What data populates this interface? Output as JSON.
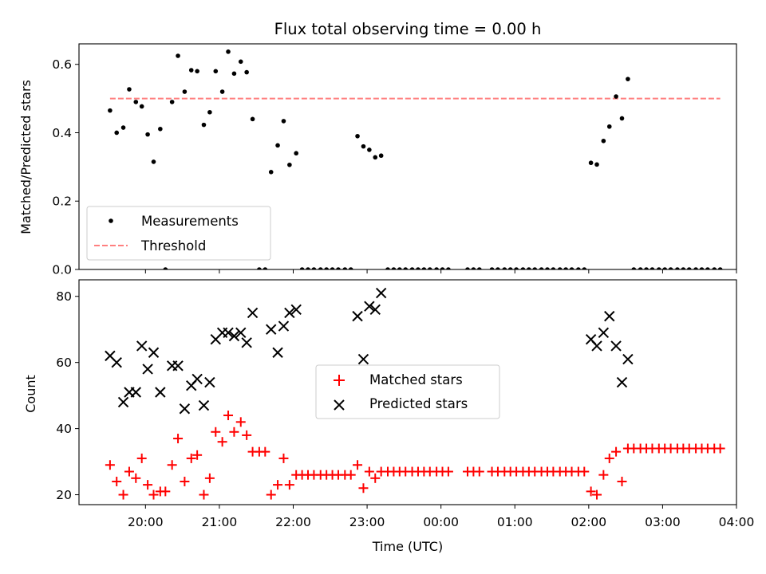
{
  "chart_data": [
    {
      "type": "scatter",
      "title": "Flux total observing time = 0.00 h",
      "xlabel": "",
      "ylabel": "Matched/Predicted stars",
      "ylim": [
        0,
        0.66
      ],
      "yticks": [
        0.0,
        0.2,
        0.4,
        0.6
      ],
      "ytick_labels": [
        "0.0",
        "0.2",
        "0.4",
        "0.6"
      ],
      "xlim_hours": [
        19.1,
        28.0
      ],
      "legend_position": "lower-left",
      "series": [
        {
          "name": "Measurements",
          "kind": "scatter",
          "color": "#000000",
          "points": [
            [
              19.52,
              0.465
            ],
            [
              19.61,
              0.4
            ],
            [
              19.7,
              0.415
            ],
            [
              19.78,
              0.527
            ],
            [
              19.87,
              0.49
            ],
            [
              19.95,
              0.477
            ],
            [
              20.03,
              0.395
            ],
            [
              20.11,
              0.315
            ],
            [
              20.2,
              0.411
            ],
            [
              20.27,
              0.0
            ],
            [
              20.36,
              0.49
            ],
            [
              20.44,
              0.625
            ],
            [
              20.53,
              0.52
            ],
            [
              20.62,
              0.583
            ],
            [
              20.7,
              0.58
            ],
            [
              20.79,
              0.423
            ],
            [
              20.87,
              0.46
            ],
            [
              20.95,
              0.58
            ],
            [
              21.04,
              0.52
            ],
            [
              21.12,
              0.637
            ],
            [
              21.2,
              0.573
            ],
            [
              21.29,
              0.608
            ],
            [
              21.37,
              0.577
            ],
            [
              21.45,
              0.44
            ],
            [
              21.54,
              0.0
            ],
            [
              21.62,
              0.0
            ],
            [
              21.7,
              0.285
            ],
            [
              21.79,
              0.363
            ],
            [
              21.87,
              0.434
            ],
            [
              21.95,
              0.306
            ],
            [
              22.04,
              0.34
            ],
            [
              22.12,
              0.0
            ],
            [
              22.2,
              0.0
            ],
            [
              22.28,
              0.0
            ],
            [
              22.37,
              0.0
            ],
            [
              22.45,
              0.0
            ],
            [
              22.53,
              0.0
            ],
            [
              22.61,
              0.0
            ],
            [
              22.7,
              0.0
            ],
            [
              22.78,
              0.0
            ],
            [
              22.87,
              0.39
            ],
            [
              22.95,
              0.36
            ],
            [
              23.03,
              0.35
            ],
            [
              23.11,
              0.328
            ],
            [
              23.19,
              0.333
            ],
            [
              23.28,
              0.0
            ],
            [
              23.36,
              0.0
            ],
            [
              23.44,
              0.0
            ],
            [
              23.52,
              0.0
            ],
            [
              23.61,
              0.0
            ],
            [
              23.69,
              0.0
            ],
            [
              23.77,
              0.0
            ],
            [
              23.85,
              0.0
            ],
            [
              23.94,
              0.0
            ],
            [
              24.02,
              0.0
            ],
            [
              24.1,
              0.0
            ],
            [
              24.36,
              0.0
            ],
            [
              24.44,
              0.0
            ],
            [
              24.52,
              0.0
            ],
            [
              24.69,
              0.0
            ],
            [
              24.77,
              0.0
            ],
            [
              24.86,
              0.0
            ],
            [
              24.94,
              0.0
            ],
            [
              25.02,
              0.0
            ],
            [
              25.11,
              0.0
            ],
            [
              25.19,
              0.0
            ],
            [
              25.27,
              0.0
            ],
            [
              25.36,
              0.0
            ],
            [
              25.44,
              0.0
            ],
            [
              25.52,
              0.0
            ],
            [
              25.61,
              0.0
            ],
            [
              25.69,
              0.0
            ],
            [
              25.77,
              0.0
            ],
            [
              25.86,
              0.0
            ],
            [
              25.94,
              0.0
            ],
            [
              26.03,
              0.312
            ],
            [
              26.11,
              0.307
            ],
            [
              26.2,
              0.376
            ],
            [
              26.28,
              0.418
            ],
            [
              26.37,
              0.506
            ],
            [
              26.45,
              0.442
            ],
            [
              26.53,
              0.557
            ],
            [
              26.61,
              0.0
            ],
            [
              26.7,
              0.0
            ],
            [
              26.78,
              0.0
            ],
            [
              26.86,
              0.0
            ],
            [
              26.95,
              0.0
            ],
            [
              27.03,
              0.0
            ],
            [
              27.11,
              0.0
            ],
            [
              27.2,
              0.0
            ],
            [
              27.28,
              0.0
            ],
            [
              27.36,
              0.0
            ],
            [
              27.45,
              0.0
            ],
            [
              27.53,
              0.0
            ],
            [
              27.61,
              0.0
            ],
            [
              27.7,
              0.0
            ],
            [
              27.78,
              0.0
            ]
          ]
        },
        {
          "name": "Threshold",
          "kind": "dashed-line",
          "color": "#ff7f7f",
          "x": [
            19.52,
            27.78
          ],
          "y": [
            0.5,
            0.5
          ]
        }
      ]
    },
    {
      "type": "scatter",
      "title": "",
      "xlabel": "Time (UTC)",
      "ylabel": "Count",
      "ylim": [
        17,
        85
      ],
      "yticks": [
        20,
        40,
        60,
        80
      ],
      "ytick_labels": [
        "20",
        "40",
        "60",
        "80"
      ],
      "xlim_hours": [
        19.1,
        28.0
      ],
      "xticks_hours": [
        20,
        21,
        22,
        23,
        24,
        25,
        26,
        27,
        28
      ],
      "xtick_labels": [
        "20:00",
        "21:00",
        "22:00",
        "23:00",
        "00:00",
        "01:00",
        "02:00",
        "03:00",
        "04:00"
      ],
      "legend_position": "center",
      "series": [
        {
          "name": "Matched stars",
          "marker": "plus",
          "color": "#ff0000",
          "points": [
            [
              19.52,
              29
            ],
            [
              19.61,
              24
            ],
            [
              19.7,
              20
            ],
            [
              19.78,
              27
            ],
            [
              19.87,
              25
            ],
            [
              19.95,
              31
            ],
            [
              20.03,
              23
            ],
            [
              20.11,
              20
            ],
            [
              20.2,
              21
            ],
            [
              20.27,
              21
            ],
            [
              20.36,
              29
            ],
            [
              20.44,
              37
            ],
            [
              20.53,
              24
            ],
            [
              20.62,
              31
            ],
            [
              20.7,
              32
            ],
            [
              20.79,
              20
            ],
            [
              20.87,
              25
            ],
            [
              20.95,
              39
            ],
            [
              21.04,
              36
            ],
            [
              21.12,
              44
            ],
            [
              21.2,
              39
            ],
            [
              21.29,
              42
            ],
            [
              21.37,
              38
            ],
            [
              21.45,
              33
            ],
            [
              21.54,
              33
            ],
            [
              21.62,
              33
            ],
            [
              21.7,
              20
            ],
            [
              21.79,
              23
            ],
            [
              21.87,
              31
            ],
            [
              21.95,
              23
            ],
            [
              22.04,
              26
            ],
            [
              22.12,
              26
            ],
            [
              22.2,
              26
            ],
            [
              22.28,
              26
            ],
            [
              22.37,
              26
            ],
            [
              22.45,
              26
            ],
            [
              22.53,
              26
            ],
            [
              22.61,
              26
            ],
            [
              22.7,
              26
            ],
            [
              22.78,
              26
            ],
            [
              22.87,
              29
            ],
            [
              22.95,
              22
            ],
            [
              23.03,
              27
            ],
            [
              23.11,
              25
            ],
            [
              23.19,
              27
            ],
            [
              23.28,
              27
            ],
            [
              23.36,
              27
            ],
            [
              23.44,
              27
            ],
            [
              23.52,
              27
            ],
            [
              23.61,
              27
            ],
            [
              23.69,
              27
            ],
            [
              23.77,
              27
            ],
            [
              23.85,
              27
            ],
            [
              23.94,
              27
            ],
            [
              24.02,
              27
            ],
            [
              24.1,
              27
            ],
            [
              24.36,
              27
            ],
            [
              24.44,
              27
            ],
            [
              24.52,
              27
            ],
            [
              24.69,
              27
            ],
            [
              24.77,
              27
            ],
            [
              24.86,
              27
            ],
            [
              24.94,
              27
            ],
            [
              25.02,
              27
            ],
            [
              25.11,
              27
            ],
            [
              25.19,
              27
            ],
            [
              25.27,
              27
            ],
            [
              25.36,
              27
            ],
            [
              25.44,
              27
            ],
            [
              25.52,
              27
            ],
            [
              25.61,
              27
            ],
            [
              25.69,
              27
            ],
            [
              25.77,
              27
            ],
            [
              25.86,
              27
            ],
            [
              25.94,
              27
            ],
            [
              26.03,
              21
            ],
            [
              26.11,
              20
            ],
            [
              26.2,
              26
            ],
            [
              26.28,
              31
            ],
            [
              26.37,
              33
            ],
            [
              26.45,
              24
            ],
            [
              26.53,
              34
            ],
            [
              26.61,
              34
            ],
            [
              26.7,
              34
            ],
            [
              26.78,
              34
            ],
            [
              26.86,
              34
            ],
            [
              26.95,
              34
            ],
            [
              27.03,
              34
            ],
            [
              27.11,
              34
            ],
            [
              27.2,
              34
            ],
            [
              27.28,
              34
            ],
            [
              27.36,
              34
            ],
            [
              27.45,
              34
            ],
            [
              27.53,
              34
            ],
            [
              27.61,
              34
            ],
            [
              27.7,
              34
            ],
            [
              27.78,
              34
            ]
          ]
        },
        {
          "name": "Predicted stars",
          "marker": "x",
          "color": "#000000",
          "points": [
            [
              19.52,
              62
            ],
            [
              19.61,
              60
            ],
            [
              19.7,
              48
            ],
            [
              19.78,
              51
            ],
            [
              19.87,
              51
            ],
            [
              19.95,
              65
            ],
            [
              20.03,
              58
            ],
            [
              20.11,
              63
            ],
            [
              20.2,
              51
            ],
            [
              20.36,
              59
            ],
            [
              20.44,
              59
            ],
            [
              20.53,
              46
            ],
            [
              20.62,
              53
            ],
            [
              20.7,
              55
            ],
            [
              20.79,
              47
            ],
            [
              20.87,
              54
            ],
            [
              20.95,
              67
            ],
            [
              21.04,
              69
            ],
            [
              21.12,
              69
            ],
            [
              21.2,
              68
            ],
            [
              21.29,
              69
            ],
            [
              21.37,
              66
            ],
            [
              21.45,
              75
            ],
            [
              21.7,
              70
            ],
            [
              21.79,
              63
            ],
            [
              21.87,
              71
            ],
            [
              21.95,
              75
            ],
            [
              22.04,
              76
            ],
            [
              22.87,
              74
            ],
            [
              22.95,
              61
            ],
            [
              23.03,
              77
            ],
            [
              23.11,
              76
            ],
            [
              23.19,
              81
            ],
            [
              26.03,
              67
            ],
            [
              26.11,
              65
            ],
            [
              26.2,
              69
            ],
            [
              26.28,
              74
            ],
            [
              26.37,
              65
            ],
            [
              26.45,
              54
            ],
            [
              26.53,
              61
            ]
          ]
        }
      ]
    }
  ]
}
